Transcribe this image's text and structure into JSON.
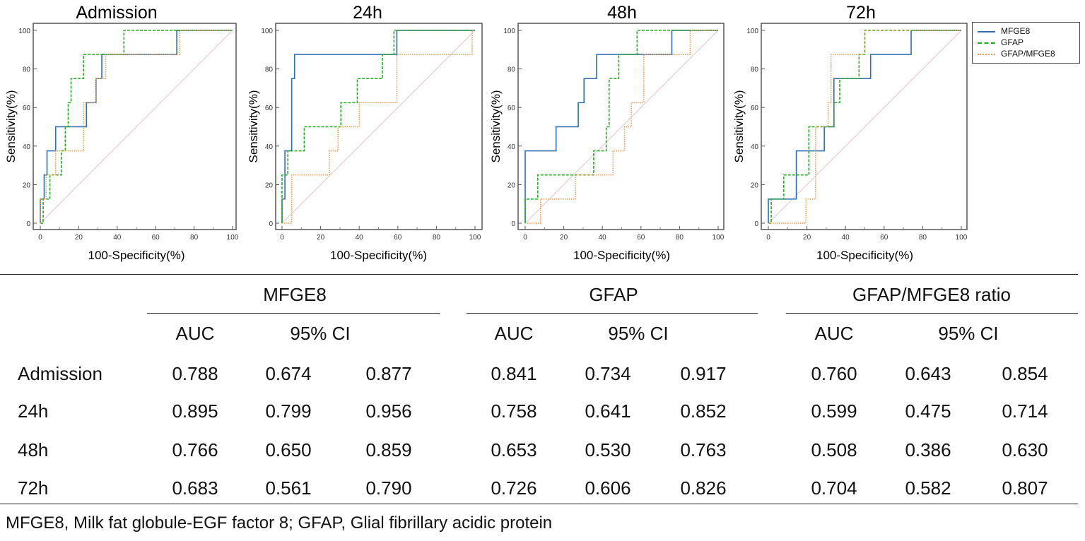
{
  "chart_data": [
    {
      "type": "line",
      "title": "Admission",
      "xlabel": "100-Specificity(%)",
      "ylabel": "Sensitivity(%)",
      "xlim": [
        0,
        100
      ],
      "ylim": [
        0,
        100
      ],
      "series": [
        {
          "name": "MFGE8",
          "points": [
            [
              0,
              0
            ],
            [
              0,
              12.5
            ],
            [
              2,
              12.5
            ],
            [
              2,
              25
            ],
            [
              3.5,
              25
            ],
            [
              3.5,
              37.5
            ],
            [
              8,
              37.5
            ],
            [
              8,
              50
            ],
            [
              24,
              50
            ],
            [
              24,
              62.5
            ],
            [
              29,
              62.5
            ],
            [
              29,
              75
            ],
            [
              32,
              75
            ],
            [
              32,
              87.5
            ],
            [
              71,
              87.5
            ],
            [
              71,
              100
            ],
            [
              100,
              100
            ]
          ]
        },
        {
          "name": "GFAP",
          "points": [
            [
              0,
              0
            ],
            [
              1.5,
              0
            ],
            [
              1.5,
              12.5
            ],
            [
              5,
              12.5
            ],
            [
              5,
              25
            ],
            [
              11,
              25
            ],
            [
              11,
              37.5
            ],
            [
              13,
              37.5
            ],
            [
              13,
              50
            ],
            [
              14.5,
              50
            ],
            [
              14.5,
              62.5
            ],
            [
              16,
              62.5
            ],
            [
              16,
              75
            ],
            [
              22.5,
              75
            ],
            [
              22.5,
              87.5
            ],
            [
              43.5,
              87.5
            ],
            [
              43.5,
              100
            ],
            [
              100,
              100
            ]
          ]
        },
        {
          "name": "GFAP/MFGE8",
          "points": [
            [
              0,
              0
            ],
            [
              0,
              12.5
            ],
            [
              3,
              12.5
            ],
            [
              3,
              25
            ],
            [
              8,
              25
            ],
            [
              8,
              37.5
            ],
            [
              22.5,
              37.5
            ],
            [
              22.5,
              62.5
            ],
            [
              29,
              62.5
            ],
            [
              29,
              75
            ],
            [
              34,
              75
            ],
            [
              34,
              87.5
            ],
            [
              72.5,
              87.5
            ],
            [
              72.5,
              100
            ],
            [
              100,
              100
            ]
          ]
        }
      ]
    },
    {
      "type": "line",
      "title": "24h",
      "xlabel": "100-Specificity(%)",
      "ylabel": "Sensitivity(%)",
      "xlim": [
        0,
        100
      ],
      "ylim": [
        0,
        100
      ],
      "series": [
        {
          "name": "MFGE8",
          "points": [
            [
              0,
              0
            ],
            [
              0,
              12.5
            ],
            [
              1.5,
              12.5
            ],
            [
              1.5,
              37.5
            ],
            [
              5,
              37.5
            ],
            [
              5,
              75
            ],
            [
              6.5,
              75
            ],
            [
              6.5,
              87.5
            ],
            [
              59.5,
              87.5
            ],
            [
              59.5,
              100
            ],
            [
              100,
              100
            ]
          ]
        },
        {
          "name": "GFAP",
          "points": [
            [
              0,
              0
            ],
            [
              0,
              25
            ],
            [
              3,
              25
            ],
            [
              3,
              37.5
            ],
            [
              11.5,
              37.5
            ],
            [
              11.5,
              50
            ],
            [
              30.5,
              50
            ],
            [
              30.5,
              62.5
            ],
            [
              39,
              62.5
            ],
            [
              39,
              75
            ],
            [
              52,
              75
            ],
            [
              52,
              87.5
            ],
            [
              58,
              87.5
            ],
            [
              58,
              100
            ],
            [
              100,
              100
            ]
          ]
        },
        {
          "name": "GFAP/MFGE8",
          "points": [
            [
              0,
              0
            ],
            [
              5,
              0
            ],
            [
              5,
              25
            ],
            [
              24.5,
              25
            ],
            [
              24.5,
              37.5
            ],
            [
              29,
              37.5
            ],
            [
              29,
              50
            ],
            [
              40,
              50
            ],
            [
              40,
              62.5
            ],
            [
              59.5,
              62.5
            ],
            [
              59.5,
              87.5
            ],
            [
              98.5,
              87.5
            ],
            [
              98.5,
              100
            ],
            [
              100,
              100
            ]
          ]
        }
      ]
    },
    {
      "type": "line",
      "title": "48h",
      "xlabel": "100-Specificity(%)",
      "ylabel": "Sensitivity(%)",
      "xlim": [
        0,
        100
      ],
      "ylim": [
        0,
        100
      ],
      "series": [
        {
          "name": "MFGE8",
          "points": [
            [
              0,
              0
            ],
            [
              0,
              37.5
            ],
            [
              16,
              37.5
            ],
            [
              16,
              50
            ],
            [
              27.5,
              50
            ],
            [
              27.5,
              62.5
            ],
            [
              30.5,
              62.5
            ],
            [
              30.5,
              75
            ],
            [
              37,
              75
            ],
            [
              37,
              87.5
            ],
            [
              76,
              87.5
            ],
            [
              76,
              100
            ],
            [
              100,
              100
            ]
          ]
        },
        {
          "name": "GFAP",
          "points": [
            [
              0,
              0
            ],
            [
              0,
              12.5
            ],
            [
              6.5,
              12.5
            ],
            [
              6.5,
              25
            ],
            [
              35.5,
              25
            ],
            [
              35.5,
              37.5
            ],
            [
              42,
              37.5
            ],
            [
              42,
              50
            ],
            [
              43.5,
              50
            ],
            [
              43.5,
              75
            ],
            [
              48.5,
              75
            ],
            [
              48.5,
              87.5
            ],
            [
              58,
              87.5
            ],
            [
              58,
              100
            ],
            [
              100,
              100
            ]
          ]
        },
        {
          "name": "GFAP/MFGE8",
          "points": [
            [
              0,
              0
            ],
            [
              8,
              0
            ],
            [
              8,
              12.5
            ],
            [
              26,
              12.5
            ],
            [
              26,
              25
            ],
            [
              45.5,
              25
            ],
            [
              45.5,
              37.5
            ],
            [
              51.5,
              37.5
            ],
            [
              51.5,
              50
            ],
            [
              55,
              50
            ],
            [
              55,
              62.5
            ],
            [
              61.5,
              62.5
            ],
            [
              61.5,
              87.5
            ],
            [
              85.5,
              87.5
            ],
            [
              85.5,
              100
            ],
            [
              100,
              100
            ]
          ]
        }
      ]
    },
    {
      "type": "line",
      "title": "72h",
      "xlabel": "100-Specificity(%)",
      "ylabel": "Sensitivity(%)",
      "xlim": [
        0,
        100
      ],
      "ylim": [
        0,
        100
      ],
      "series": [
        {
          "name": "MFGE8",
          "points": [
            [
              0,
              0
            ],
            [
              0,
              12.5
            ],
            [
              14.5,
              12.5
            ],
            [
              14.5,
              37.5
            ],
            [
              29,
              37.5
            ],
            [
              29,
              50
            ],
            [
              34,
              50
            ],
            [
              34,
              75
            ],
            [
              53,
              75
            ],
            [
              53,
              87.5
            ],
            [
              74,
              87.5
            ],
            [
              74,
              100
            ],
            [
              100,
              100
            ]
          ]
        },
        {
          "name": "GFAP",
          "points": [
            [
              0,
              0
            ],
            [
              1.5,
              0
            ],
            [
              1.5,
              12.5
            ],
            [
              8,
              12.5
            ],
            [
              8,
              25
            ],
            [
              21,
              25
            ],
            [
              21,
              50
            ],
            [
              34,
              50
            ],
            [
              34,
              62.5
            ],
            [
              37,
              62.5
            ],
            [
              37,
              75
            ],
            [
              47,
              75
            ],
            [
              47,
              87.5
            ],
            [
              50,
              87.5
            ],
            [
              50,
              100
            ],
            [
              100,
              100
            ]
          ]
        },
        {
          "name": "GFAP/MFGE8",
          "points": [
            [
              0,
              0
            ],
            [
              19.5,
              0
            ],
            [
              19.5,
              12.5
            ],
            [
              24.5,
              12.5
            ],
            [
              24.5,
              50
            ],
            [
              31,
              50
            ],
            [
              31,
              62.5
            ],
            [
              32.5,
              62.5
            ],
            [
              32.5,
              87.5
            ],
            [
              50,
              87.5
            ],
            [
              50,
              100
            ],
            [
              100,
              100
            ]
          ]
        }
      ]
    }
  ],
  "ticks": [
    "0",
    "20",
    "40",
    "60",
    "80",
    "100"
  ],
  "legend": {
    "items": [
      "MFGE8",
      "GFAP",
      "GFAP/MFGE8"
    ],
    "position": "top-right"
  },
  "colors": {
    "MFGE8": "#2e6db4",
    "GFAP": "#1fae1f",
    "GFAP/MFGE8": "#f49a4c",
    "diag": "#e0c8c8"
  },
  "table": {
    "groups": [
      "MFGE8",
      "GFAP",
      "GFAP/MFGE8 ratio"
    ],
    "sub": [
      "AUC",
      "95% CI"
    ],
    "rows": [
      {
        "label": "Admission",
        "v": [
          "0.788",
          "0.674",
          "0.877",
          "0.841",
          "0.734",
          "0.917",
          "0.760",
          "0.643",
          "0.854"
        ]
      },
      {
        "label": "24h",
        "v": [
          "0.895",
          "0.799",
          "0.956",
          "0.758",
          "0.641",
          "0.852",
          "0.599",
          "0.475",
          "0.714"
        ]
      },
      {
        "label": "48h",
        "v": [
          "0.766",
          "0.650",
          "0.859",
          "0.653",
          "0.530",
          "0.763",
          "0.508",
          "0.386",
          "0.630"
        ]
      },
      {
        "label": "72h",
        "v": [
          "0.683",
          "0.561",
          "0.790",
          "0.726",
          "0.606",
          "0.826",
          "0.704",
          "0.582",
          "0.807"
        ]
      }
    ],
    "footnote": "MFGE8, Milk fat globule-EGF factor 8; GFAP, Glial fibrillary acidic protein"
  }
}
